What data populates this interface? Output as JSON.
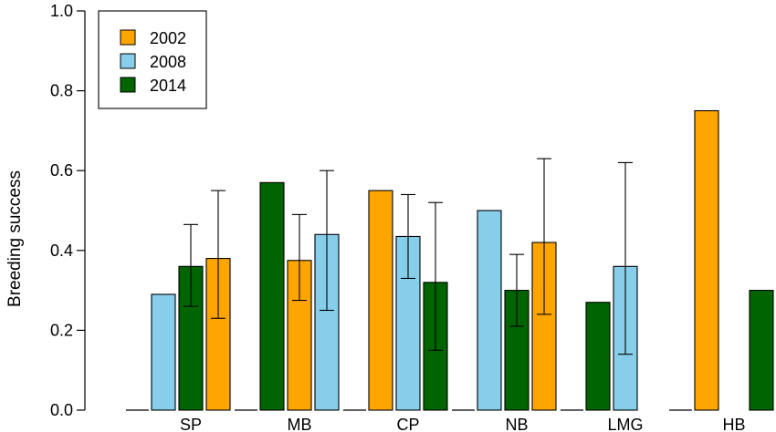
{
  "chart_data": {
    "type": "bar",
    "ylabel": "Breeding success",
    "xlabel": "",
    "ylim": [
      0,
      1.0
    ],
    "yticks": [
      "0.0",
      "0.2",
      "0.4",
      "0.6",
      "0.8",
      "1.0"
    ],
    "categories": [
      "SP",
      "MB",
      "CP",
      "NB",
      "LMG",
      "HB"
    ],
    "legend_position": "top-left",
    "series": [
      {
        "name": "2002",
        "color": "#FFA500"
      },
      {
        "name": "2008",
        "color": "#87CEEB"
      },
      {
        "name": "2014",
        "color": "#006400"
      }
    ],
    "bars": [
      {
        "category": "SP",
        "series": "2008",
        "value": 0.29,
        "err_low": null,
        "err_high": null
      },
      {
        "category": "SP",
        "series": "2014",
        "value": 0.36,
        "err_low": 0.26,
        "err_high": 0.465
      },
      {
        "category": "SP",
        "series": "2002",
        "value": 0.38,
        "err_low": 0.23,
        "err_high": 0.55
      },
      {
        "category": "MB",
        "series": "2014",
        "value": 0.57,
        "err_low": null,
        "err_high": null
      },
      {
        "category": "MB",
        "series": "2002",
        "value": 0.375,
        "err_low": 0.275,
        "err_high": 0.49
      },
      {
        "category": "MB",
        "series": "2008",
        "value": 0.44,
        "err_low": 0.25,
        "err_high": 0.6
      },
      {
        "category": "CP",
        "series": "2002",
        "value": 0.55,
        "err_low": null,
        "err_high": null
      },
      {
        "category": "CP",
        "series": "2008",
        "value": 0.435,
        "err_low": 0.33,
        "err_high": 0.54
      },
      {
        "category": "CP",
        "series": "2014",
        "value": 0.32,
        "err_low": 0.15,
        "err_high": 0.52
      },
      {
        "category": "NB",
        "series": "2008",
        "value": 0.5,
        "err_low": null,
        "err_high": null
      },
      {
        "category": "NB",
        "series": "2014",
        "value": 0.3,
        "err_low": 0.21,
        "err_high": 0.39
      },
      {
        "category": "NB",
        "series": "2002",
        "value": 0.42,
        "err_low": 0.24,
        "err_high": 0.63
      },
      {
        "category": "LMG",
        "series": "2014",
        "value": 0.27,
        "err_low": null,
        "err_high": null
      },
      {
        "category": "LMG",
        "series": "2008",
        "value": 0.36,
        "err_low": 0.14,
        "err_high": 0.62
      },
      {
        "category": "HB",
        "series": "2002",
        "value": 0.75,
        "err_low": null,
        "err_high": null
      },
      {
        "category": "HB",
        "series": "2014",
        "value": 0.3,
        "err_low": null,
        "err_high": null
      }
    ]
  }
}
